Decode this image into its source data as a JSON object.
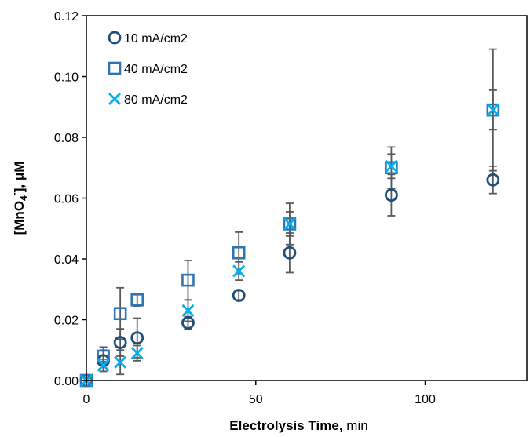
{
  "chart_data": {
    "type": "scatter",
    "xlabel": {
      "bold": "Electrolysis Time,",
      "rest": " min"
    },
    "ylabel": {
      "open": "[MnO",
      "sub": "4",
      "sup": "-",
      "close": "], μM"
    },
    "xlim": [
      0,
      130
    ],
    "ylim": [
      0,
      0.12
    ],
    "x_ticks": [
      {
        "value": 0,
        "label": "0"
      },
      {
        "value": 50,
        "label": "50"
      },
      {
        "value": 100,
        "label": "100"
      }
    ],
    "y_ticks": [
      {
        "value": 0,
        "label": "0.00"
      },
      {
        "value": 0.02,
        "label": "0.02"
      },
      {
        "value": 0.04,
        "label": "0.04"
      },
      {
        "value": 0.06,
        "label": "0.06"
      },
      {
        "value": 0.08,
        "label": "0.08"
      },
      {
        "value": 0.1,
        "label": "0.10"
      },
      {
        "value": 0.12,
        "label": "0.12"
      }
    ],
    "grid": false,
    "legend_position": "top-left",
    "error_bar_color": "#595959",
    "series": [
      {
        "name": "10 mA/cm2",
        "marker": "circle",
        "color": "#1F4E79",
        "x": [
          0,
          5,
          10,
          15,
          30,
          45,
          60,
          90,
          120
        ],
        "y": [
          0,
          0.0065,
          0.0125,
          0.014,
          0.019,
          0.028,
          0.042,
          0.061,
          0.066
        ],
        "err": [
          0.001,
          0.0035,
          0.0045,
          0.0065,
          0.002,
          0.0015,
          0.0065,
          0.0068,
          0.0045
        ]
      },
      {
        "name": "40 mA/cm2",
        "marker": "square",
        "color": "#2E75B6",
        "x": [
          0,
          5,
          10,
          15,
          30,
          45,
          60,
          90,
          120
        ],
        "y": [
          0,
          0.008,
          0.022,
          0.0265,
          0.033,
          0.042,
          0.0515,
          0.07,
          0.089
        ],
        "err": [
          0.001,
          0.003,
          0.0085,
          0.002,
          0.0065,
          0.0068,
          0.0068,
          0.0068,
          0.02
        ]
      },
      {
        "name": "80 mA/cm2",
        "marker": "x",
        "color": "#00B0F0",
        "x": [
          0,
          5,
          10,
          15,
          30,
          45,
          60,
          90,
          120
        ],
        "y": [
          0,
          0.005,
          0.006,
          0.009,
          0.023,
          0.036,
          0.0515,
          0.0705,
          0.089
        ],
        "err": [
          0.001,
          0.002,
          0.004,
          0.0025,
          0.0035,
          0.003,
          0.004,
          0.004,
          0.0065
        ]
      }
    ]
  }
}
